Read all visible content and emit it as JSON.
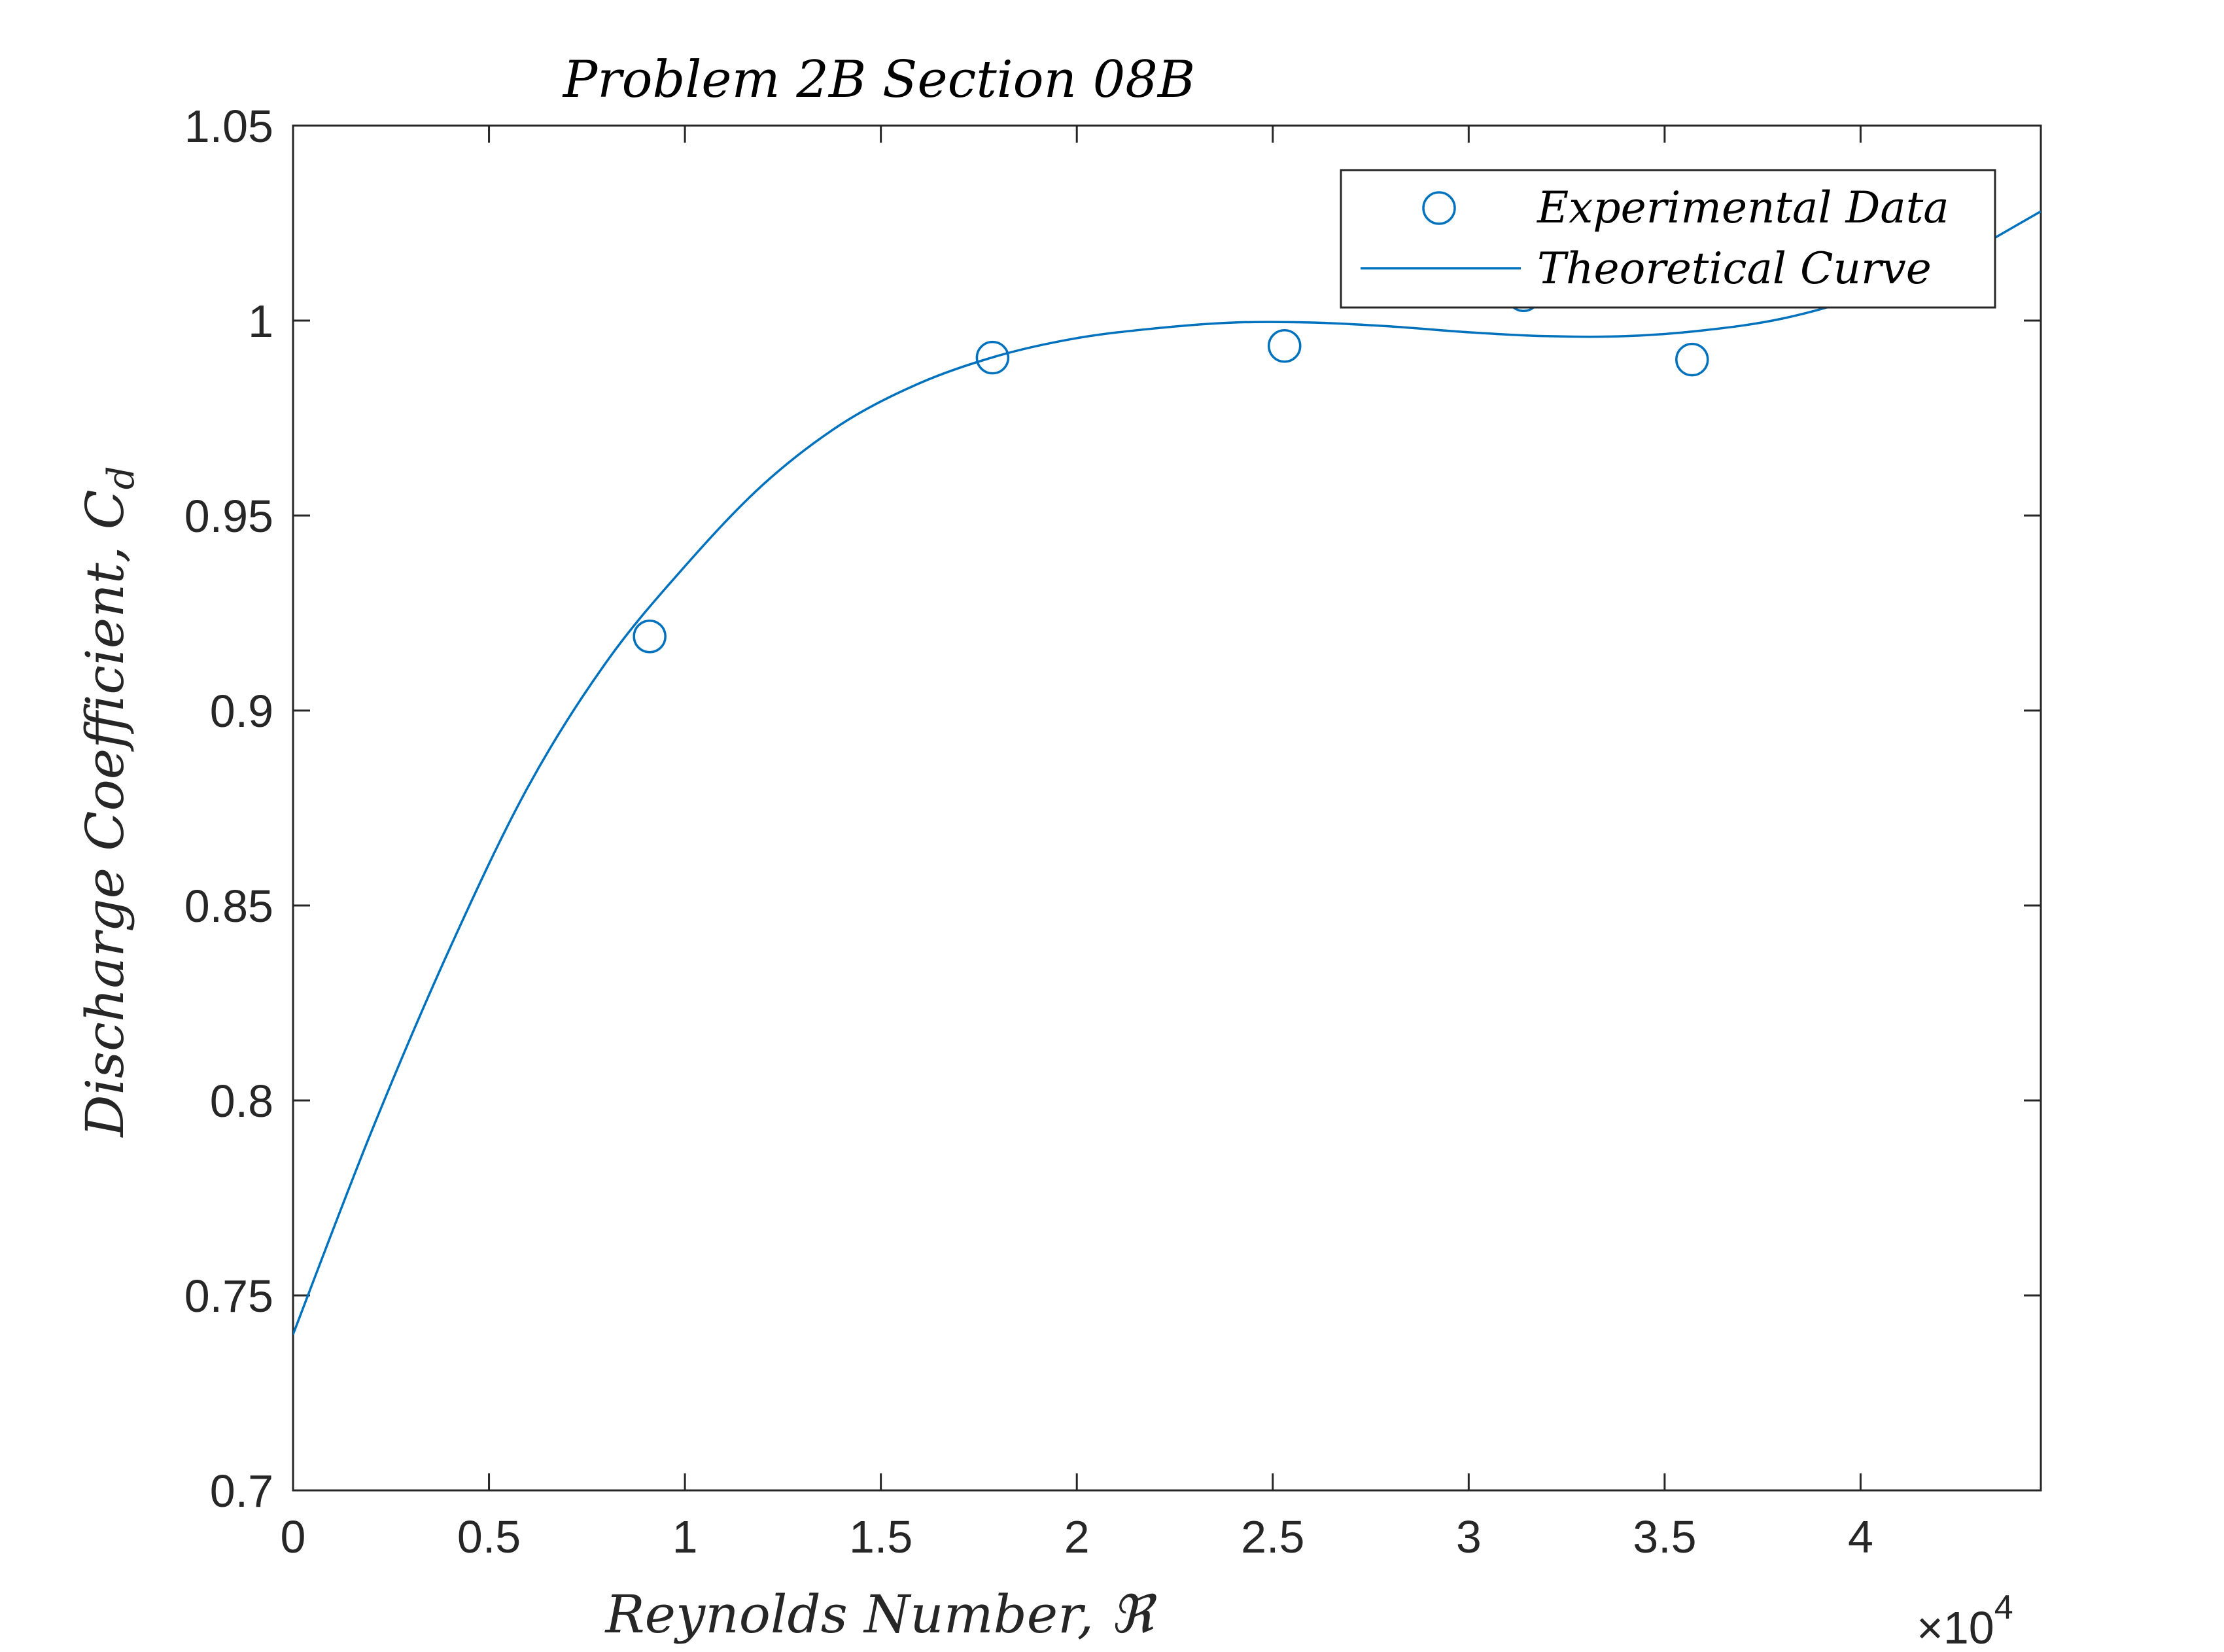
{
  "chart_data": {
    "type": "scatter",
    "title": "Problem 2B Section 08B",
    "xlabel": "Reynolds Number, ℜ",
    "ylabel": "Discharge Coefficient, C",
    "ylabel_subscript": "d",
    "x_exponent_label": "×10",
    "x_exponent_power": "4",
    "xlim": [
      0,
      44600
    ],
    "ylim": [
      0.7,
      1.05
    ],
    "x_ticks": [
      0,
      5000,
      10000,
      15000,
      20000,
      25000,
      30000,
      35000,
      40000
    ],
    "x_tick_labels": [
      "0",
      "0.5",
      "1",
      "1.5",
      "2",
      "2.5",
      "3",
      "3.5",
      "4"
    ],
    "y_ticks": [
      0.7,
      0.75,
      0.8,
      0.85,
      0.9,
      0.95,
      1.0,
      1.05
    ],
    "y_tick_labels": [
      "0.7",
      "0.75",
      "0.8",
      "0.85",
      "0.9",
      "0.95",
      "1",
      "1.05"
    ],
    "grid": false,
    "legend_position": "top-right",
    "series": [
      {
        "name": "Experimental Data",
        "kind": "scatter",
        "color": "#0072BD",
        "x": [
          9100,
          17850,
          25300,
          31400,
          35700
        ],
        "y": [
          0.919,
          0.9905,
          0.9935,
          1.0065,
          0.99
        ]
      },
      {
        "name": "Theoretical Curve",
        "kind": "line",
        "color": "#0072BD",
        "x": [
          0,
          2000,
          4000,
          6000,
          8000,
          10000,
          12000,
          14000,
          16000,
          18000,
          20000,
          22000,
          24000,
          26000,
          28000,
          30000,
          32000,
          34000,
          36000,
          38000,
          40000,
          42000,
          44600
        ],
        "y": [
          0.74,
          0.792,
          0.839,
          0.8805,
          0.9125,
          0.937,
          0.958,
          0.9735,
          0.984,
          0.991,
          0.9955,
          0.998,
          0.9995,
          0.9995,
          0.9985,
          0.997,
          0.996,
          0.996,
          0.9975,
          1.0005,
          1.006,
          1.0135,
          1.028
        ]
      }
    ]
  }
}
